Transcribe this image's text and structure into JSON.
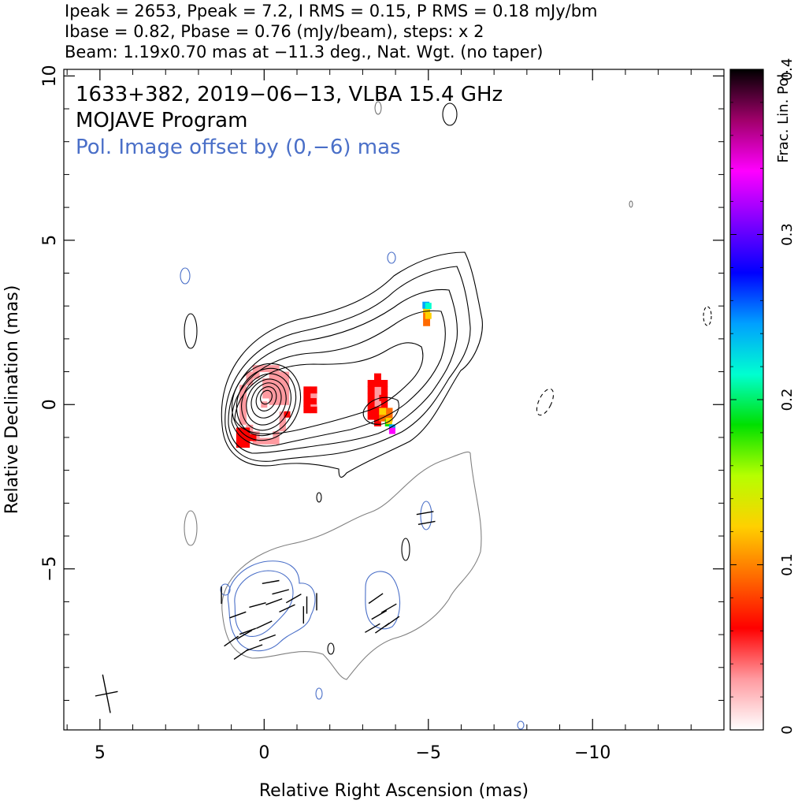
{
  "header": {
    "line1": "Ipeak = 2653, Ppeak = 7.2, I RMS = 0.15, P RMS = 0.18 mJy/bm",
    "line2": "Ibase = 0.82, Pbase = 0.76 (mJy/beam), steps: x 2",
    "line3": "Beam: 1.19x0.70 mas at −11.3 deg., Nat. Wgt. (no taper)"
  },
  "annotations": {
    "source": "1633+382, 2019−06−13, VLBA 15.4 GHz",
    "program": "MOJAVE Program",
    "pol_offset": "Pol. Image offset by (0,−6) mas"
  },
  "colors": {
    "stokes_i_contour": "#000000",
    "pol_contour": "#4a6fc8",
    "lowest_i_contour": "#808080",
    "annotation_blue": "#4a6fc8"
  },
  "colorbar": {
    "label": "Frac. Lin. Pol.",
    "ticks": [
      "0",
      "0.1",
      "0.2",
      "0.3",
      "0.4"
    ],
    "range": [
      0,
      0.4
    ],
    "colormap": [
      "#ffffff",
      "#ff9aa0",
      "#ff0000",
      "#ff6a00",
      "#ffd000",
      "#b6ff00",
      "#00e000",
      "#00ffd0",
      "#00a0ff",
      "#0000ff",
      "#8000ff",
      "#ff00ff",
      "#a0006a",
      "#000000"
    ]
  },
  "chart_data": {
    "type": "contour",
    "title": "",
    "xlabel": "Relative Right Ascension (mas)",
    "ylabel": "Relative Declination (mas)",
    "xlim": [
      6.1,
      -14.0
    ],
    "ylim": [
      -9.9,
      10.2
    ],
    "x_ticks": [
      5,
      0,
      -5,
      -10
    ],
    "x_tick_labels": [
      "5",
      "0",
      "−5",
      "−10"
    ],
    "y_ticks": [
      10,
      5,
      0,
      -5
    ],
    "y_tick_labels": [
      "10",
      "5",
      "0",
      "−5"
    ],
    "beam": {
      "major_mas": 1.19,
      "minor_mas": 0.7,
      "pa_deg": -11.3,
      "position": "bottom-left"
    },
    "stokes_i": {
      "peak_mjy_per_beam": 2653,
      "base_mjy_per_beam": 0.82,
      "step_factor": 2,
      "n_levels": 12
    },
    "polarization": {
      "peak_mjy_per_beam": 7.2,
      "base_mjy_per_beam": 0.76,
      "offset_mas": [
        0,
        -6
      ]
    },
    "frac_pol_regions": [
      {
        "x": 0.0,
        "y": 0.0,
        "value": 0.02
      },
      {
        "x": -0.7,
        "y": -0.3,
        "value": 0.05
      },
      {
        "x": 0.7,
        "y": -1.2,
        "value": 0.06
      },
      {
        "x": -1.5,
        "y": 0.1,
        "value": 0.06
      },
      {
        "x": -3.6,
        "y": 0.2,
        "value": 0.06
      },
      {
        "x": -3.8,
        "y": -0.5,
        "value": 0.13
      },
      {
        "x": -3.9,
        "y": -0.7,
        "value": 0.25
      },
      {
        "x": -3.9,
        "y": -0.8,
        "value": 0.33
      },
      {
        "x": -5.0,
        "y": 2.7,
        "value": 0.12
      },
      {
        "x": -5.0,
        "y": 3.0,
        "value": 0.2
      }
    ]
  }
}
